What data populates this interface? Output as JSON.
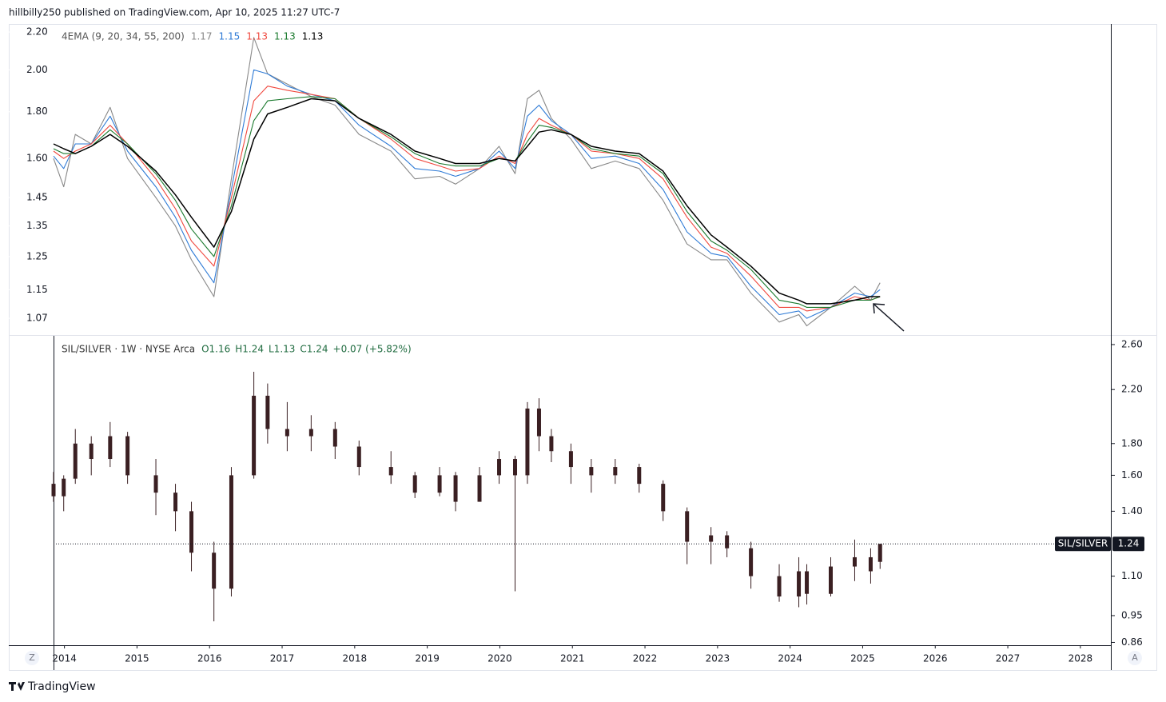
{
  "header": {
    "text": "hillbilly250 published on TradingView.com, Apr 10, 2025 11:27 UTC-7"
  },
  "buttons": [
    "Z",
    "A"
  ],
  "footer": {
    "brand": "TradingView"
  },
  "chart_data": [
    {
      "type": "line",
      "title": "4EMA (9, 20, 34, 55, 200)",
      "log_scale": true,
      "xlim": [
        2013.85,
        2028.42
      ],
      "ylim": [
        1.028,
        2.245
      ],
      "yticks": [
        {
          "value": 2.2,
          "label": "2.20"
        },
        {
          "value": 2,
          "label": "2.00"
        },
        {
          "value": 1.8,
          "label": "1.80"
        },
        {
          "value": 1.6,
          "label": "1.60"
        },
        1.45,
        1.35,
        1.25,
        1.15,
        1.07
      ],
      "x": [
        2013.85,
        2013.99,
        2014.15,
        2014.37,
        2014.63,
        2014.87,
        2015.26,
        2015.53,
        2015.75,
        2016.06,
        2016.3,
        2016.61,
        2016.8,
        2017.07,
        2017.4,
        2017.73,
        2018.06,
        2018.5,
        2018.83,
        2019.17,
        2019.39,
        2019.72,
        2019.99,
        2020.21,
        2020.38,
        2020.54,
        2020.71,
        2020.98,
        2021.26,
        2021.59,
        2021.92,
        2022.25,
        2022.58,
        2022.91,
        2023.13,
        2023.46,
        2023.85,
        2024.12,
        2024.23,
        2024.56,
        2024.89,
        2025.11,
        2025.24
      ],
      "series": [
        {
          "color": "#888888",
          "values": [
            1.6,
            1.49,
            1.7,
            1.66,
            1.82,
            1.6,
            1.45,
            1.35,
            1.24,
            1.13,
            1.52,
            2.17,
            1.98,
            1.93,
            1.87,
            1.83,
            1.7,
            1.63,
            1.52,
            1.53,
            1.5,
            1.56,
            1.65,
            1.54,
            1.86,
            1.9,
            1.77,
            1.68,
            1.56,
            1.59,
            1.56,
            1.44,
            1.29,
            1.24,
            1.24,
            1.14,
            1.06,
            1.08,
            1.05,
            1.1,
            1.16,
            1.12,
            1.17
          ]
        },
        {
          "color": "#2f7bd6",
          "values": [
            1.61,
            1.56,
            1.66,
            1.66,
            1.78,
            1.63,
            1.49,
            1.38,
            1.27,
            1.17,
            1.48,
            2.0,
            1.98,
            1.92,
            1.88,
            1.85,
            1.74,
            1.65,
            1.56,
            1.55,
            1.53,
            1.56,
            1.63,
            1.56,
            1.78,
            1.83,
            1.76,
            1.7,
            1.6,
            1.61,
            1.58,
            1.48,
            1.33,
            1.26,
            1.25,
            1.16,
            1.08,
            1.09,
            1.07,
            1.1,
            1.14,
            1.13,
            1.15
          ]
        },
        {
          "color": "#f0483e",
          "values": [
            1.63,
            1.6,
            1.63,
            1.66,
            1.74,
            1.66,
            1.52,
            1.41,
            1.3,
            1.22,
            1.45,
            1.85,
            1.92,
            1.9,
            1.88,
            1.86,
            1.77,
            1.68,
            1.6,
            1.57,
            1.55,
            1.56,
            1.61,
            1.58,
            1.7,
            1.77,
            1.74,
            1.7,
            1.63,
            1.62,
            1.6,
            1.52,
            1.38,
            1.28,
            1.26,
            1.19,
            1.1,
            1.1,
            1.09,
            1.1,
            1.13,
            1.12,
            1.13
          ]
        },
        {
          "color": "#1b7a2e",
          "values": [
            1.64,
            1.62,
            1.62,
            1.65,
            1.72,
            1.66,
            1.54,
            1.44,
            1.34,
            1.25,
            1.42,
            1.76,
            1.85,
            1.86,
            1.87,
            1.86,
            1.77,
            1.69,
            1.62,
            1.58,
            1.57,
            1.57,
            1.6,
            1.59,
            1.67,
            1.74,
            1.73,
            1.7,
            1.64,
            1.62,
            1.61,
            1.54,
            1.4,
            1.3,
            1.27,
            1.21,
            1.12,
            1.11,
            1.1,
            1.1,
            1.12,
            1.12,
            1.13
          ]
        },
        {
          "color": "#000000",
          "values": [
            1.66,
            1.64,
            1.62,
            1.65,
            1.7,
            1.65,
            1.55,
            1.46,
            1.38,
            1.28,
            1.4,
            1.68,
            1.79,
            1.82,
            1.86,
            1.85,
            1.77,
            1.7,
            1.63,
            1.6,
            1.58,
            1.58,
            1.6,
            1.59,
            1.65,
            1.71,
            1.72,
            1.7,
            1.65,
            1.63,
            1.62,
            1.55,
            1.42,
            1.32,
            1.28,
            1.22,
            1.14,
            1.12,
            1.11,
            1.11,
            1.12,
            1.13,
            1.13
          ]
        }
      ]
    },
    {
      "type": "candlestick",
      "title": "SIL/SILVER · 1W · NYSE Arca",
      "legend_items": [
        "O1.16",
        "H1.24",
        "L1.13",
        "C1.24",
        "+0.07 (+5.82%)"
      ],
      "price_label": "SIL/SILVER",
      "color": "#3a1f22",
      "log_scale": true,
      "xlim": [
        2013.85,
        2028.42
      ],
      "xticks": [
        2014,
        2015,
        2016,
        2017,
        2018,
        2019,
        2020,
        2021,
        2022,
        2023,
        2024,
        2025,
        2026,
        2027,
        2028
      ],
      "ylim": [
        0.851,
        2.686
      ],
      "yticks": [
        {
          "value": 2.6,
          "label": "2.60"
        },
        {
          "value": 2.2,
          "label": "2.20"
        },
        {
          "value": 1.8,
          "label": "1.80"
        },
        {
          "value": 1.6,
          "label": "1.60"
        },
        {
          "value": 1.4,
          "label": "1.40"
        },
        {
          "value": 1.1,
          "label": "1.10"
        },
        0.95,
        0.86
      ],
      "x": [
        2013.85,
        2013.99,
        2014.15,
        2014.37,
        2014.63,
        2014.87,
        2015.26,
        2015.53,
        2015.75,
        2016.06,
        2016.3,
        2016.61,
        2016.8,
        2017.07,
        2017.4,
        2017.73,
        2018.06,
        2018.5,
        2018.83,
        2019.17,
        2019.39,
        2019.72,
        2019.99,
        2020.21,
        2020.38,
        2020.54,
        2020.71,
        2020.98,
        2021.26,
        2021.59,
        2021.92,
        2022.25,
        2022.58,
        2022.91,
        2023.13,
        2023.46,
        2023.85,
        2024.12,
        2024.23,
        2024.56,
        2024.89,
        2025.11,
        2025.24
      ],
      "open": [
        1.55,
        1.48,
        1.58,
        1.8,
        1.7,
        1.85,
        1.6,
        1.5,
        1.4,
        1.2,
        1.05,
        1.6,
        2.15,
        1.9,
        1.85,
        1.9,
        1.78,
        1.65,
        1.6,
        1.5,
        1.6,
        1.45,
        1.6,
        1.7,
        1.6,
        2.05,
        1.85,
        1.75,
        1.65,
        1.6,
        1.65,
        1.55,
        1.4,
        1.25,
        1.28,
        1.22,
        1.1,
        1.02,
        1.12,
        1.03,
        1.14,
        1.18,
        1.16
      ],
      "high": [
        1.62,
        1.6,
        1.9,
        1.85,
        1.95,
        1.88,
        1.7,
        1.55,
        1.45,
        1.25,
        1.65,
        2.35,
        2.25,
        2.1,
        2.0,
        1.95,
        1.82,
        1.75,
        1.62,
        1.65,
        1.62,
        1.65,
        1.75,
        1.72,
        2.1,
        2.13,
        1.9,
        1.8,
        1.7,
        1.7,
        1.67,
        1.57,
        1.42,
        1.32,
        1.3,
        1.25,
        1.15,
        1.18,
        1.15,
        1.18,
        1.26,
        1.22,
        1.24
      ],
      "low": [
        1.45,
        1.4,
        1.55,
        1.6,
        1.65,
        1.55,
        1.38,
        1.3,
        1.12,
        0.93,
        1.02,
        1.58,
        1.8,
        1.75,
        1.75,
        1.7,
        1.6,
        1.55,
        1.47,
        1.48,
        1.4,
        1.45,
        1.55,
        1.04,
        1.55,
        1.75,
        1.68,
        1.55,
        1.5,
        1.55,
        1.5,
        1.35,
        1.15,
        1.15,
        1.18,
        1.05,
        1.0,
        0.98,
        0.99,
        1.02,
        1.08,
        1.07,
        1.13
      ],
      "close": [
        1.48,
        1.58,
        1.8,
        1.7,
        1.85,
        1.6,
        1.5,
        1.4,
        1.2,
        1.05,
        1.6,
        2.15,
        1.9,
        1.85,
        1.9,
        1.78,
        1.65,
        1.6,
        1.5,
        1.6,
        1.45,
        1.6,
        1.7,
        1.6,
        2.05,
        1.85,
        1.75,
        1.65,
        1.6,
        1.65,
        1.55,
        1.4,
        1.25,
        1.28,
        1.22,
        1.1,
        1.02,
        1.12,
        1.03,
        1.14,
        1.18,
        1.12,
        1.24
      ]
    }
  ]
}
